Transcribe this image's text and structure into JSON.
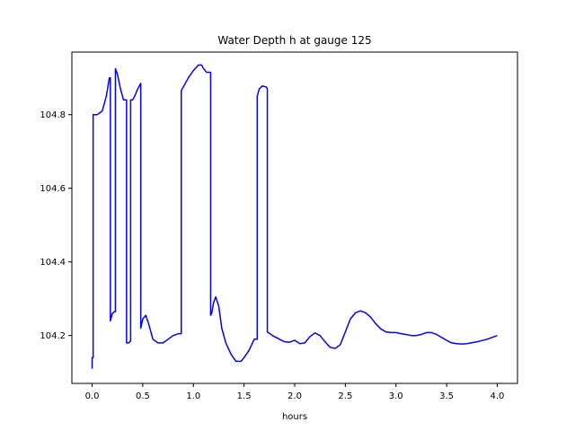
{
  "chart_data": {
    "type": "line",
    "title": "Water Depth h at gauge 125",
    "xlabel": "hours",
    "ylabel": "",
    "xlim": [
      -0.2,
      4.2
    ],
    "ylim": [
      104.07,
      104.97
    ],
    "grid": false,
    "legend": "none",
    "xticks": [
      0.0,
      0.5,
      1.0,
      1.5,
      2.0,
      2.5,
      3.0,
      3.5,
      4.0
    ],
    "xtick_labels": [
      "0.0",
      "0.5",
      "1.0",
      "1.5",
      "2.0",
      "2.5",
      "3.0",
      "3.5",
      "4.0"
    ],
    "yticks": [
      104.2,
      104.4,
      104.6,
      104.8
    ],
    "ytick_labels": [
      "104.2",
      "104.4",
      "104.6",
      "104.8"
    ],
    "series": [
      {
        "name": "",
        "color": "#0000ff",
        "x": [
          0.0,
          0.0,
          0.01,
          0.01,
          0.05,
          0.1,
          0.14,
          0.17,
          0.18,
          0.18,
          0.2,
          0.22,
          0.23,
          0.23,
          0.25,
          0.28,
          0.31,
          0.33,
          0.34,
          0.34,
          0.36,
          0.38,
          0.38,
          0.4,
          0.42,
          0.45,
          0.48,
          0.48,
          0.5,
          0.53,
          0.56,
          0.6,
          0.65,
          0.7,
          0.75,
          0.8,
          0.85,
          0.88,
          0.88,
          0.9,
          0.95,
          1.0,
          1.05,
          1.08,
          1.1,
          1.13,
          1.15,
          1.17,
          1.17,
          1.18,
          1.2,
          1.22,
          1.25,
          1.28,
          1.32,
          1.37,
          1.42,
          1.47,
          1.5,
          1.55,
          1.6,
          1.63,
          1.63,
          1.65,
          1.68,
          1.72,
          1.73,
          1.73,
          1.78,
          1.85,
          1.9,
          1.95,
          2.0,
          2.05,
          2.1,
          2.15,
          2.2,
          2.25,
          2.3,
          2.35,
          2.4,
          2.45,
          2.5,
          2.55,
          2.6,
          2.65,
          2.7,
          2.75,
          2.8,
          2.85,
          2.9,
          2.95,
          3.0,
          3.05,
          3.1,
          3.15,
          3.2,
          3.25,
          3.3,
          3.35,
          3.4,
          3.45,
          3.5,
          3.55,
          3.6,
          3.65,
          3.7,
          3.8,
          3.9,
          4.0
        ],
        "y": [
          104.11,
          104.14,
          104.14,
          104.8,
          104.8,
          104.81,
          104.85,
          104.9,
          104.9,
          104.24,
          104.26,
          104.265,
          104.265,
          104.925,
          104.91,
          104.87,
          104.84,
          104.84,
          104.84,
          104.18,
          104.18,
          104.185,
          104.84,
          104.84,
          104.85,
          104.87,
          104.885,
          104.22,
          104.245,
          104.255,
          104.23,
          104.19,
          104.18,
          104.18,
          104.19,
          104.2,
          104.205,
          104.205,
          104.865,
          104.875,
          104.9,
          104.92,
          104.935,
          104.935,
          104.925,
          104.915,
          104.915,
          104.915,
          104.255,
          104.26,
          104.29,
          104.305,
          104.28,
          104.22,
          104.18,
          104.15,
          104.13,
          104.13,
          104.14,
          104.16,
          104.19,
          104.19,
          104.85,
          104.87,
          104.878,
          104.875,
          104.87,
          104.21,
          104.2,
          104.19,
          104.183,
          104.182,
          104.187,
          104.178,
          104.18,
          104.197,
          104.207,
          104.2,
          104.183,
          104.168,
          104.165,
          104.175,
          104.21,
          104.245,
          104.262,
          104.267,
          104.262,
          104.25,
          104.232,
          104.218,
          104.21,
          104.208,
          104.208,
          104.205,
          104.203,
          104.2,
          104.2,
          104.203,
          104.208,
          104.208,
          104.203,
          104.195,
          104.187,
          104.18,
          104.178,
          104.177,
          104.178,
          104.183,
          104.19,
          104.2
        ]
      }
    ]
  }
}
